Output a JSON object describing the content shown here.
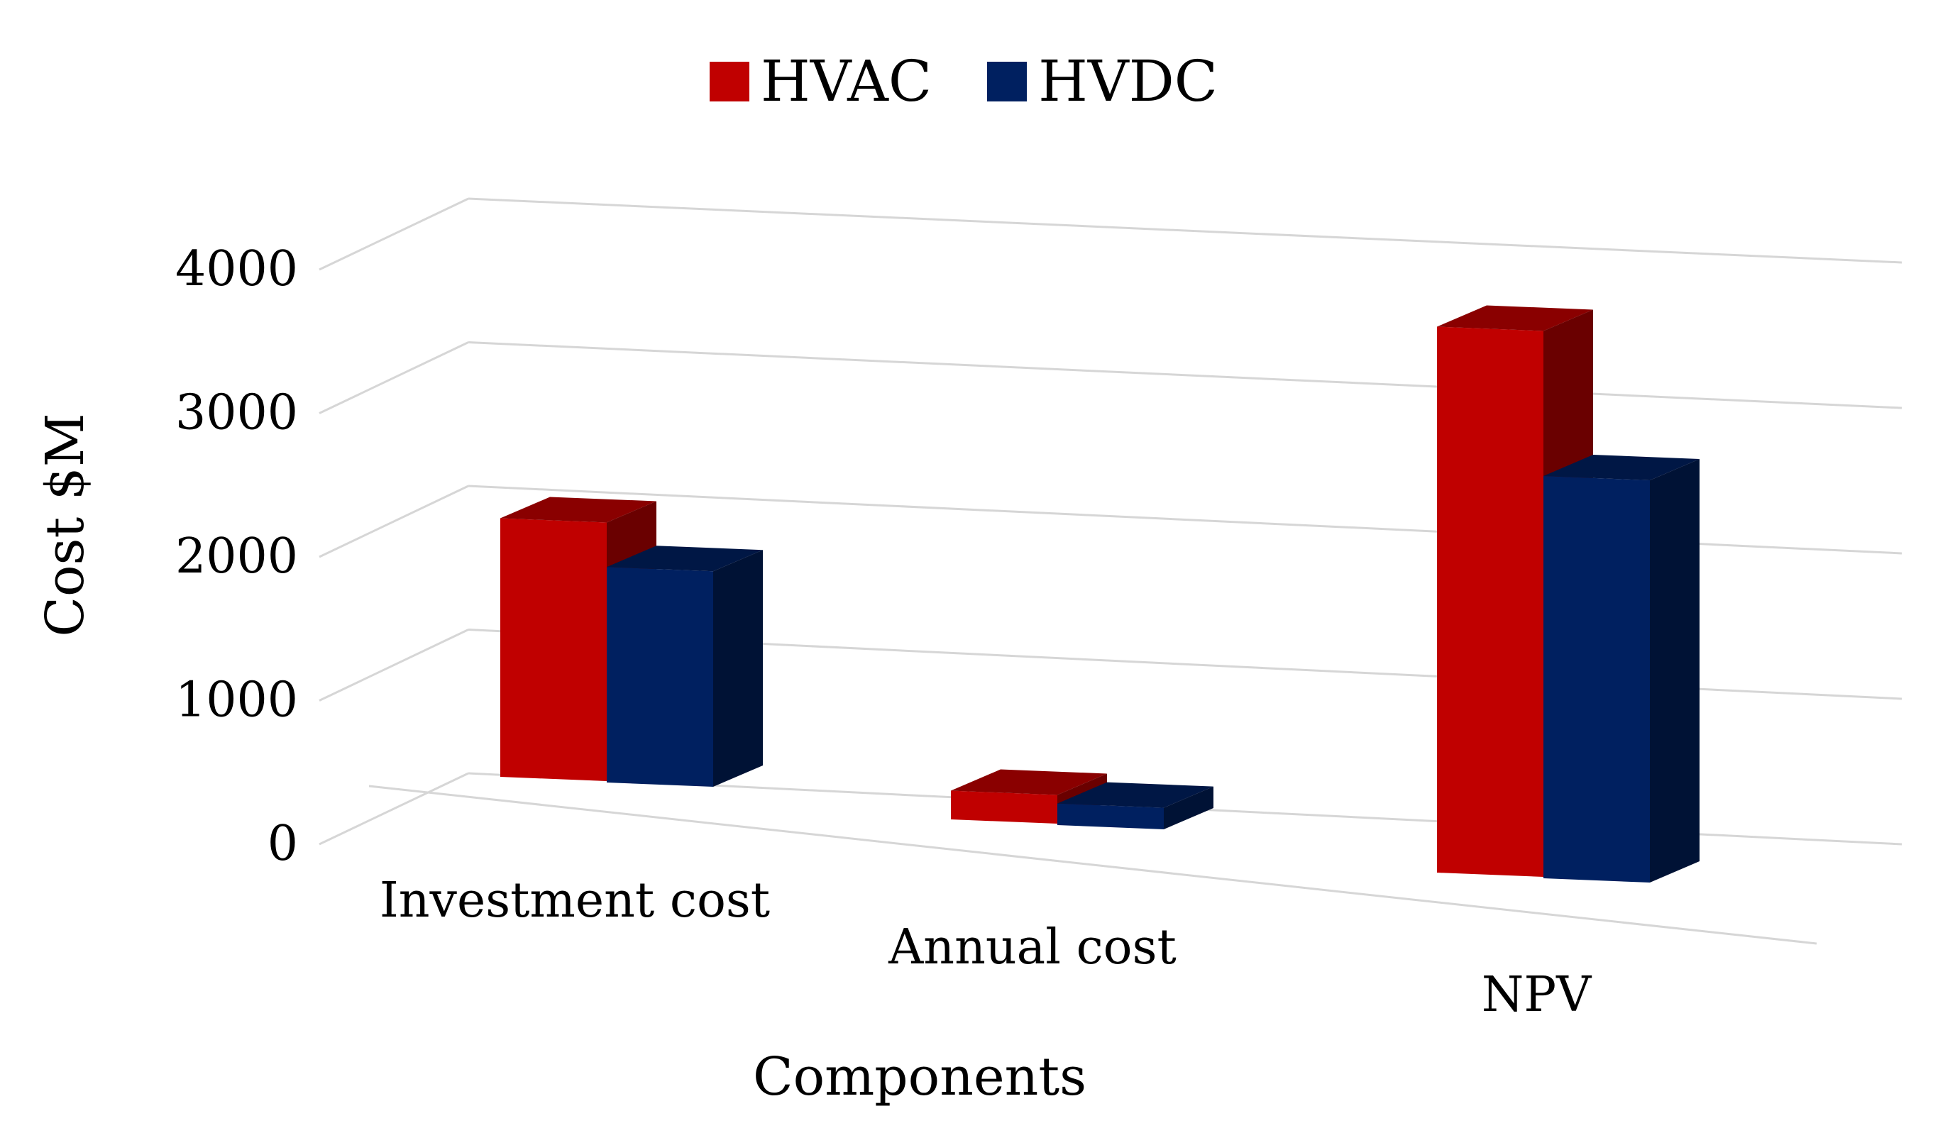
{
  "chart_data": {
    "type": "bar",
    "categories": [
      "Investment cost",
      "Annual cost",
      "NPV"
    ],
    "series": [
      {
        "name": "HVAC",
        "values": [
          1800,
          200,
          3800
        ],
        "color": "#C00000"
      },
      {
        "name": "HVDC",
        "values": [
          1500,
          150,
          2800
        ],
        "color": "#002060"
      }
    ],
    "xlabel": "Components",
    "ylabel": "Cost $M",
    "ylim": [
      0,
      4000
    ],
    "yticks": [
      "0",
      "1000",
      "2000",
      "3000",
      "4000"
    ],
    "grid": true,
    "legend_position": "top",
    "style": "3d-clustered-column"
  }
}
